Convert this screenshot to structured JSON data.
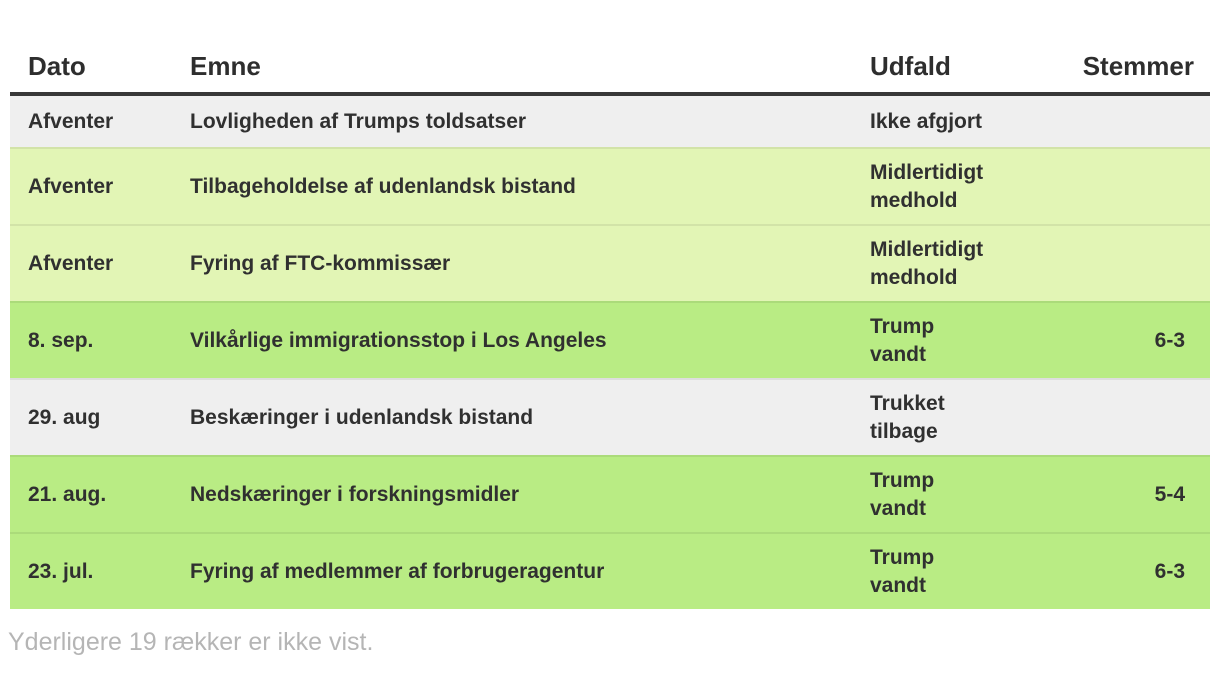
{
  "chart_data": {
    "type": "table",
    "columns": [
      "Dato",
      "Emne",
      "Udfald",
      "Stemmer"
    ],
    "rows": [
      {
        "dato": "Afventer",
        "emne": "Lovligheden af Trumps toldsatser",
        "udfald": "Ikke afgjort",
        "stemmer": "",
        "tone": "gray"
      },
      {
        "dato": "Afventer",
        "emne": "Tilbageholdelse af udenlandsk bistand",
        "udfald": "Midlertidigt\nmedhold",
        "stemmer": "",
        "tone": "light-green"
      },
      {
        "dato": "Afventer",
        "emne": "Fyring af FTC-kommissær",
        "udfald": "Midlertidigt\nmedhold",
        "stemmer": "",
        "tone": "light-green"
      },
      {
        "dato": "8. sep.",
        "emne": "Vilkårlige immigrationsstop i Los Angeles",
        "udfald": "Trump\nvandt",
        "stemmer": "6-3",
        "tone": "green"
      },
      {
        "dato": "29. aug",
        "emne": "Beskæringer i udenlandsk bistand",
        "udfald": "Trukket\ntilbage",
        "stemmer": "",
        "tone": "gray"
      },
      {
        "dato": "21. aug.",
        "emne": "Nedskæringer i forskningsmidler",
        "udfald": "Trump\nvandt",
        "stemmer": "5-4",
        "tone": "green"
      },
      {
        "dato": "23. jul.",
        "emne": "Fyring af medlemmer af forbrugeragentur",
        "udfald": "Trump\nvandt",
        "stemmer": "6-3",
        "tone": "green"
      }
    ],
    "note": "Yderligere 19 rækker er ikke vist.",
    "layout": {
      "grid": false,
      "header_rule_color": "#383838",
      "row_color_gray": "#efefef",
      "row_color_light_green": "#e2f5b5",
      "row_color_green": "#b9ec84",
      "text_color": "#303030",
      "note_color": "#b5b5b5"
    }
  }
}
